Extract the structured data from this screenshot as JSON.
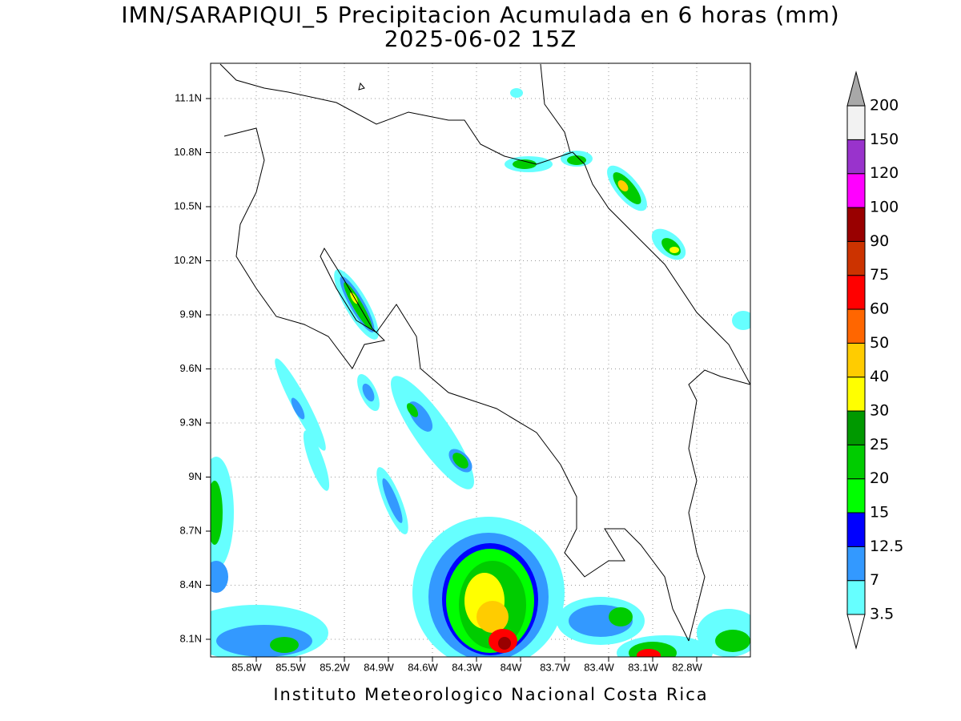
{
  "title": "IMN/SARAPIQUI_5 Precipitacion Acumulada en 6 horas (mm)",
  "subtitle": "2025-06-02 15Z",
  "footer": "Instituto Meteorologico Nacional Costa Rica",
  "lat_labels": [
    "8.1N",
    "8.4N",
    "8.7N",
    "9N",
    "9.3N",
    "9.6N",
    "9.9N",
    "10.2N",
    "10.5N",
    "10.8N",
    "11.1N"
  ],
  "lon_labels": [
    "85.8W",
    "85.5W",
    "85.2W",
    "84.9W",
    "84.6W",
    "84.3W",
    "84W",
    "83.7W",
    "83.4W",
    "83.1W",
    "82.8W"
  ],
  "colorbar": {
    "levels": [
      3.5,
      7,
      12.5,
      15,
      20,
      25,
      30,
      40,
      50,
      60,
      75,
      90,
      100,
      120,
      150,
      200
    ],
    "colors": [
      "#66ffff",
      "#3399ff",
      "#0000ff",
      "#00ff00",
      "#00cc00",
      "#009900",
      "#ffff00",
      "#ffcc00",
      "#ff6600",
      "#ff0000",
      "#cc3300",
      "#990000",
      "#ff00ff",
      "#9933cc",
      "#f2f2f2"
    ],
    "under_color": "#ffffff",
    "over_color": "#a8a8a8"
  }
}
